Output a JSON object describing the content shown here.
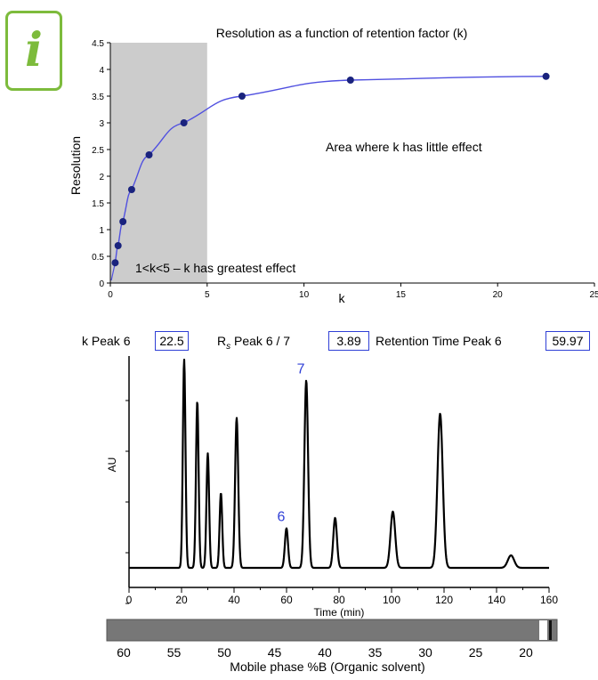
{
  "info_icon": {
    "glyph": "i",
    "color": "#7dbb3c"
  },
  "chart_data": [
    {
      "type": "line",
      "title": "Resolution as a function of retention factor (k)",
      "xlabel": "k",
      "ylabel": "Resolution",
      "xlim": [
        0,
        25
      ],
      "ylim": [
        0,
        4.5
      ],
      "x_ticks": [
        "0",
        "5",
        "10",
        "15",
        "20",
        "25"
      ],
      "y_ticks": [
        "0",
        "0.5",
        "1",
        "1.5",
        "2",
        "2.5",
        "3",
        "3.5",
        "4",
        "4.5"
      ],
      "x": [
        0.25,
        0.4,
        0.65,
        1.1,
        2.0,
        3.8,
        6.8,
        12.4,
        22.5
      ],
      "series": [
        {
          "values": [
            0.38,
            0.7,
            1.15,
            1.75,
            2.4,
            3.0,
            3.5,
            3.8,
            3.87
          ],
          "color": "#1a237e",
          "line_color": "#5050e0"
        }
      ],
      "shaded_region": {
        "x": [
          0,
          5
        ],
        "color": "#cccccc"
      },
      "annotations": [
        "Area where k  has little effect",
        "1<k<5 – k  has greatest effect"
      ],
      "grid": false
    },
    {
      "type": "line",
      "xlabel": "Time (min)",
      "ylabel": "AU",
      "xlim": [
        0,
        160
      ],
      "x_ticks": [
        "0",
        "20",
        "40",
        "60",
        "80",
        "100",
        "120",
        "140",
        "160"
      ],
      "peaks": [
        {
          "time": 21.0,
          "height": 1.0,
          "width": 0.5
        },
        {
          "time": 26.0,
          "height": 0.8,
          "width": 0.5
        },
        {
          "time": 30.0,
          "height": 0.55,
          "width": 0.5
        },
        {
          "time": 35.0,
          "height": 0.36,
          "width": 0.5
        },
        {
          "time": 41.0,
          "height": 0.72,
          "width": 0.6
        },
        {
          "time": 59.97,
          "height": 0.19,
          "width": 0.6,
          "label": "6"
        },
        {
          "time": 67.5,
          "height": 0.9,
          "width": 0.7,
          "label": "7"
        },
        {
          "time": 78.5,
          "height": 0.24,
          "width": 0.7
        },
        {
          "time": 100.5,
          "height": 0.27,
          "width": 0.9
        },
        {
          "time": 118.5,
          "height": 0.74,
          "width": 1.0
        },
        {
          "time": 145.5,
          "height": 0.06,
          "width": 1.2
        }
      ],
      "line_color": "#000000",
      "label_color": "#2f3fd6",
      "grid": false
    }
  ],
  "readouts": {
    "k_label": "k Peak 6",
    "k_value": "22.5",
    "rs_label_prefix": "R",
    "rs_label_sub": "s",
    "rs_label_suffix": " Peak 6 / 7",
    "rs_value": "3.89",
    "rt_label": "Retention Time Peak 6",
    "rt_value": "59.97"
  },
  "mobile_phase": {
    "label": "Mobile phase  %B  (Organic solvent)",
    "ticks": [
      "60",
      "55",
      "50",
      "45",
      "40",
      "35",
      "30",
      "25",
      "20"
    ],
    "bar_color": "#777777"
  }
}
